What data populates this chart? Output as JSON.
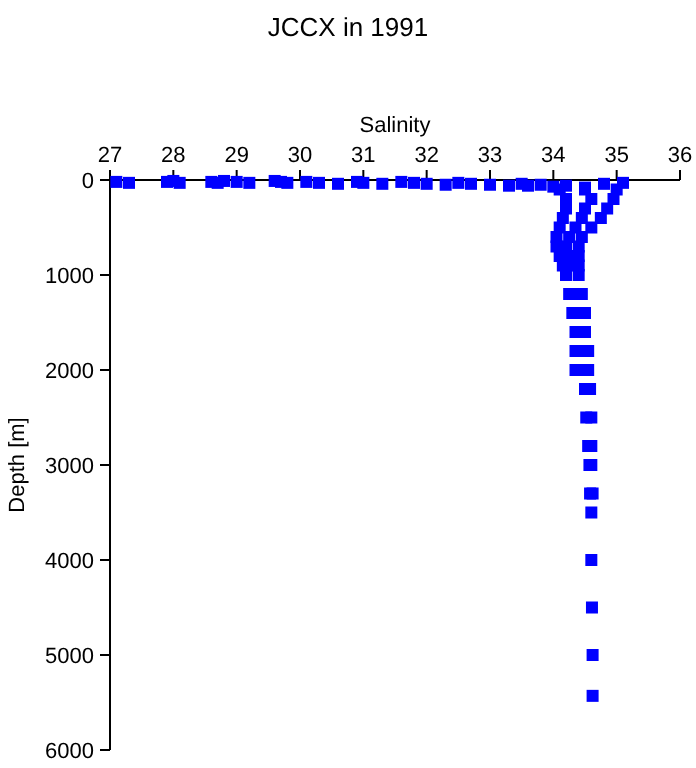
{
  "chart_data": {
    "type": "scatter",
    "title": "JCCX in 1991",
    "xlabel": "Salinity",
    "ylabel": "Depth [m]",
    "xlim": [
      27,
      36
    ],
    "xticks": [
      27,
      28,
      29,
      30,
      31,
      32,
      33,
      34,
      35,
      36
    ],
    "ylim": [
      6000,
      0
    ],
    "yticks": [
      0,
      1000,
      2000,
      3000,
      4000,
      5000,
      6000
    ],
    "marker": "square",
    "grid": false,
    "series": [
      {
        "color": "#0000ff",
        "x": [
          27.1,
          27.3,
          27.9,
          28.0,
          28.1,
          28.6,
          28.7,
          28.8,
          29.0,
          29.2,
          29.6,
          29.7,
          29.8,
          30.1,
          30.3,
          30.6,
          30.9,
          31.0,
          31.3,
          31.6,
          31.8,
          32.0,
          32.3,
          32.5,
          32.7,
          33.0,
          33.3,
          33.5,
          33.6,
          33.8,
          34.0,
          34.2,
          34.5,
          34.8,
          35.1,
          34.1,
          34.5,
          35.0,
          34.2,
          34.6,
          34.95,
          34.2,
          34.5,
          34.85,
          34.15,
          34.45,
          34.75,
          34.1,
          34.35,
          34.6,
          34.05,
          34.25,
          34.45,
          34.05,
          34.2,
          34.4,
          34.1,
          34.25,
          34.4,
          34.15,
          34.3,
          34.4,
          34.2,
          34.4,
          34.25,
          34.35,
          34.45,
          34.3,
          34.4,
          34.5,
          34.35,
          34.5,
          34.35,
          34.45,
          34.55,
          34.35,
          34.45,
          34.55,
          34.5,
          34.58,
          34.52,
          34.6,
          34.55,
          34.6,
          34.57,
          34.6,
          34.58,
          34.62,
          34.6,
          34.6,
          34.61,
          34.62,
          34.62
        ],
        "values": [
          20,
          30,
          20,
          10,
          30,
          20,
          30,
          10,
          20,
          30,
          10,
          20,
          30,
          20,
          30,
          40,
          20,
          30,
          40,
          20,
          30,
          40,
          50,
          30,
          40,
          50,
          60,
          40,
          60,
          50,
          70,
          60,
          80,
          40,
          30,
          100,
          100,
          100,
          200,
          200,
          200,
          300,
          300,
          300,
          400,
          400,
          400,
          500,
          500,
          500,
          600,
          600,
          600,
          700,
          700,
          700,
          800,
          800,
          800,
          900,
          900,
          900,
          1000,
          1000,
          1200,
          1200,
          1200,
          1400,
          1400,
          1400,
          1600,
          1600,
          1800,
          1800,
          1800,
          2000,
          2000,
          2000,
          2200,
          2200,
          2500,
          2500,
          2800,
          2800,
          3000,
          3000,
          3300,
          3300,
          3500,
          4000,
          4500,
          5000,
          5430
        ]
      }
    ]
  }
}
